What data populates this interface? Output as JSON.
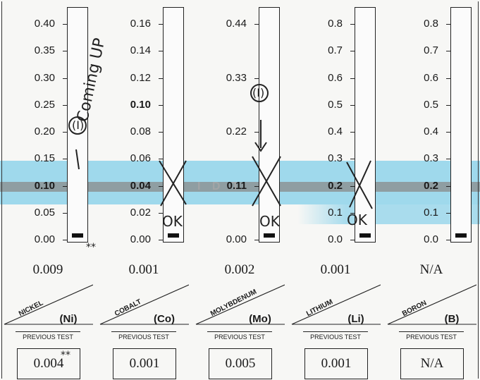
{
  "columns": [
    {
      "key": "ni",
      "element": "NICKEL",
      "symbol": "(Ni)",
      "ticks": [
        "0.40",
        "0.35",
        "0.30",
        "0.25",
        "0.20",
        "0.15",
        "0.10",
        "0.05",
        "0.00"
      ],
      "reading": "0.009",
      "previous_label": "PREVIOUS TEST",
      "previous": "0.004"
    },
    {
      "key": "co",
      "element": "COBALT",
      "symbol": "(Co)",
      "ticks": [
        "0.16",
        "0.14",
        "0.12",
        "0.10",
        "0.08",
        "0.06",
        "0.04",
        "0.02",
        "0.00"
      ],
      "reading": "0.001",
      "previous_label": "PREVIOUS TEST",
      "previous": "0.001"
    },
    {
      "key": "mo",
      "element": "MOLYBDENUM",
      "symbol": "(Mo)",
      "ticks": [
        "0.44",
        "0.33",
        "0.22",
        "0.11",
        "0.00"
      ],
      "reading": "0.002",
      "previous_label": "PREVIOUS TEST",
      "previous": "0.005"
    },
    {
      "key": "li",
      "element": "LITHIUM",
      "symbol": "(Li)",
      "ticks": [
        "0.8",
        "0.7",
        "0.6",
        "0.5",
        "0.4",
        "0.3",
        "0.2",
        "0.1",
        "0.0"
      ],
      "reading": "0.001",
      "previous_label": "PREVIOUS TEST",
      "previous": "0.001"
    },
    {
      "key": "b",
      "element": "BORON",
      "symbol": "(B)",
      "ticks": [
        "0.8",
        "0.7",
        "0.6",
        "0.5",
        "0.4",
        "0.3",
        "0.2",
        "0.1",
        "0.0"
      ],
      "reading": "N/A",
      "previous_label": "PREVIOUS TEST",
      "previous": "N/A"
    }
  ],
  "handwriting": {
    "coming_up": "Coming UP",
    "ok": "OK",
    "arrow_note": "(I)",
    "stars": "**"
  },
  "colors": {
    "highlight": "#8fd3ea",
    "band": "#8a8a8a"
  }
}
